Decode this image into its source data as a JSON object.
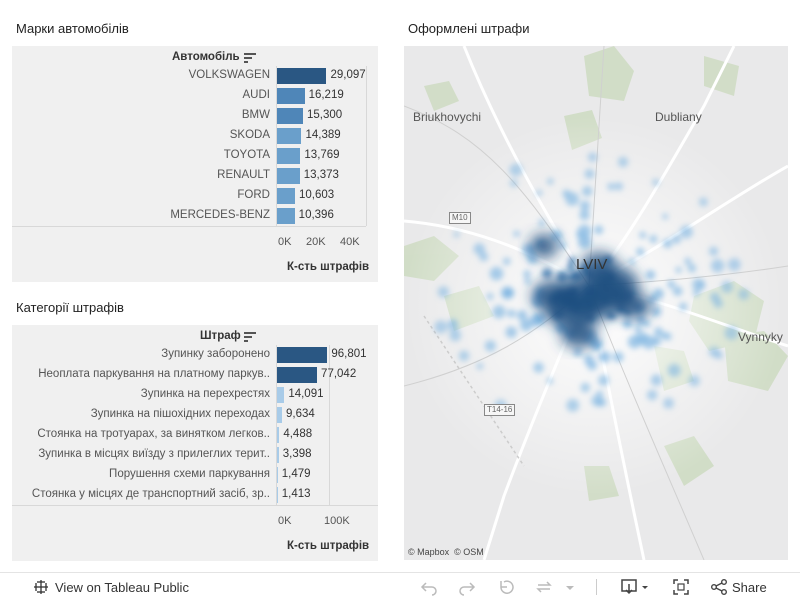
{
  "brands_panel": {
    "title": "Марки автомобілів",
    "header": "Автомобіль",
    "axis_title": "К-сть штрафів"
  },
  "categories_panel": {
    "title": "Категорії штрафів",
    "header": "Штраф",
    "axis_title": "К-сть штрафів"
  },
  "map_panel": {
    "title": "Оформлені штрафи",
    "places": [
      "Briukhovychi",
      "Dubliany",
      "Vynnyky",
      "LVIV"
    ],
    "roads": [
      "M10",
      "T14-16"
    ],
    "credits": [
      "© Mapbox",
      "© OSM"
    ]
  },
  "chart_data": [
    {
      "type": "bar",
      "orientation": "horizontal",
      "title": "Марки автомобілів",
      "ylabel": "Автомобіль",
      "xlabel": "К-сть штрафів",
      "categories": [
        "VOLKSWAGEN",
        "AUDI",
        "BMW",
        "SKODA",
        "TOYOTA",
        "RENAULT",
        "FORD",
        "MERCEDES-BENZ"
      ],
      "values": [
        29097,
        16219,
        15300,
        14389,
        13769,
        13373,
        10603,
        10396
      ],
      "value_labels": [
        "29,097",
        "16,219",
        "15,300",
        "14,389",
        "13,769",
        "13,373",
        "10,603",
        "10,396"
      ],
      "xlim": [
        0,
        40000
      ],
      "ticks": [
        "0K",
        "20K",
        "40K"
      ]
    },
    {
      "type": "bar",
      "orientation": "horizontal",
      "title": "Категорії штрафів",
      "ylabel": "Штраф",
      "xlabel": "К-сть штрафів",
      "categories": [
        "Зупинку заборонено",
        "Неоплата паркування на платному паркув..",
        "Зупинка на перехрестях",
        "Зупинка на пішохідних переходах",
        "Стоянка на тротуарах, за винятком легков..",
        "Зупинка в місцях виїзду з прилеглих терит..",
        "Порушення схеми паркування",
        "Стоянка у місцях де транспортний засіб, зр.."
      ],
      "values": [
        96801,
        77042,
        14091,
        9634,
        4488,
        3398,
        1479,
        1413
      ],
      "value_labels": [
        "96,801",
        "77,042",
        "14,091",
        "9,634",
        "4,488",
        "3,398",
        "1,479",
        "1,413"
      ],
      "xlim": [
        0,
        100000
      ],
      "ticks": [
        "0K",
        "100K"
      ]
    }
  ],
  "toolbar": {
    "view_label": "View on Tableau Public",
    "share_label": "Share"
  },
  "colors": {
    "dark": "#2a5783",
    "mid": "#6a9fcb",
    "light": "#a8cbe8",
    "panel": "#f0f0f0"
  }
}
